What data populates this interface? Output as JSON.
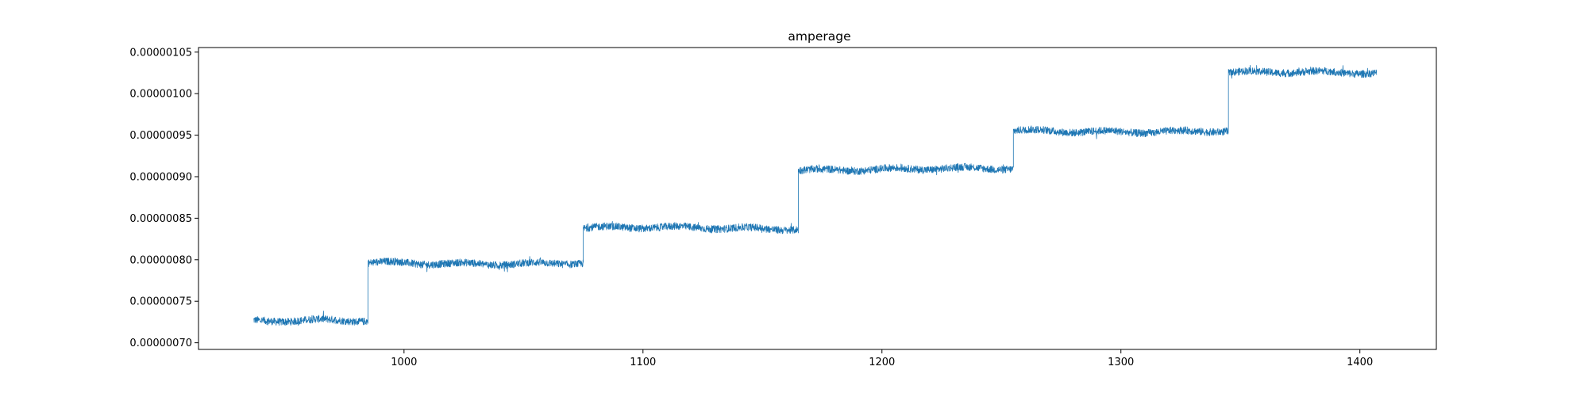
{
  "chart_data": {
    "type": "line",
    "title": "amperage",
    "xlabel": "",
    "ylabel": "",
    "xlim": [
      914,
      1432
    ],
    "ylim": [
      6.92e-07,
      1.0555e-06
    ],
    "x_ticks": [
      1000,
      1100,
      1200,
      1300,
      1400
    ],
    "x_tick_labels": [
      "1000",
      "1100",
      "1200",
      "1300",
      "1400"
    ],
    "y_ticks": [
      7e-07,
      7.5e-07,
      8e-07,
      8.5e-07,
      9e-07,
      9.5e-07,
      1e-06,
      1.05e-06
    ],
    "y_tick_labels": [
      "0.00000070",
      "0.00000075",
      "0.00000080",
      "0.00000085",
      "0.00000090",
      "0.00000095",
      "0.00000100",
      "0.00000105"
    ],
    "grid": false,
    "legend": "none",
    "series_color": "#1f77b4",
    "x_range": [
      937,
      1407
    ],
    "noise_amplitude": 4.5e-09,
    "steps": [
      {
        "x_start": 937,
        "x_end": 985,
        "level": 7.26e-07
      },
      {
        "x_start": 985,
        "x_end": 1075,
        "level": 7.96e-07
      },
      {
        "x_start": 1075,
        "x_end": 1165,
        "level": 8.38e-07
      },
      {
        "x_start": 1165,
        "x_end": 1255,
        "level": 9.09e-07
      },
      {
        "x_start": 1255,
        "x_end": 1345,
        "level": 9.55e-07
      },
      {
        "x_start": 1345,
        "x_end": 1407,
        "level": 1.025e-06
      }
    ]
  }
}
